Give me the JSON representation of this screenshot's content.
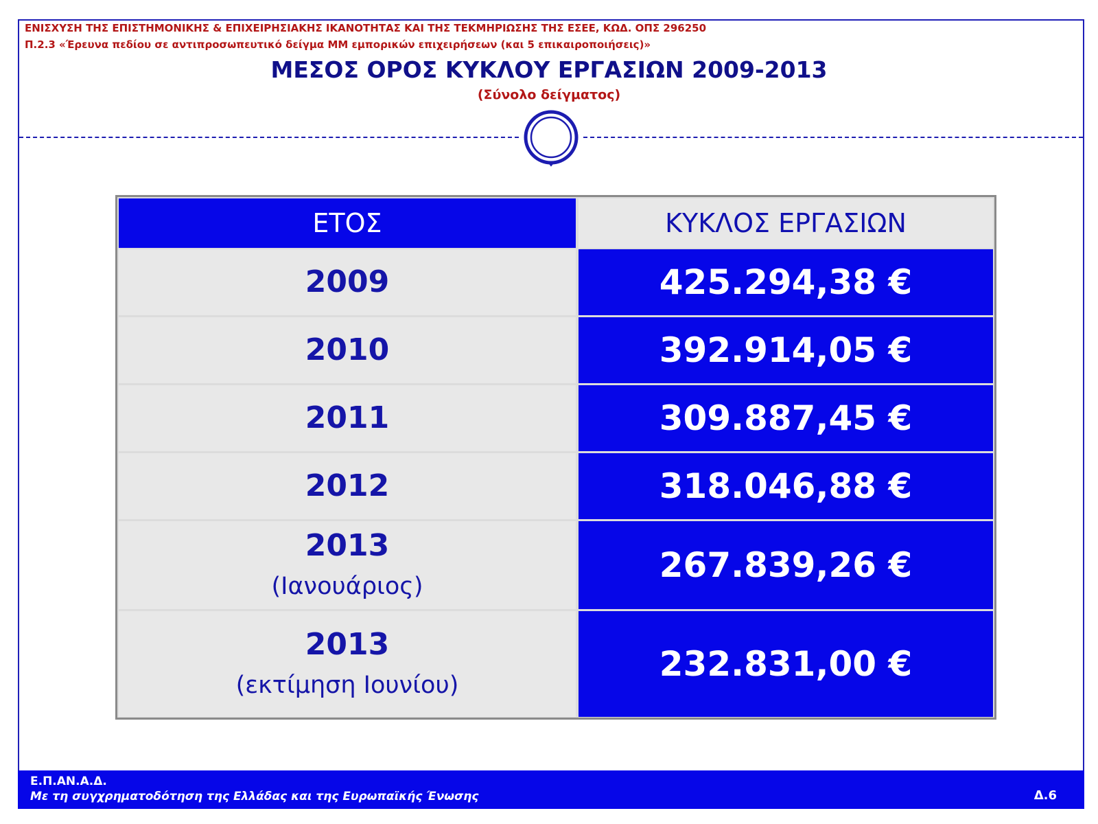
{
  "header": {
    "line1": "ΕΝΙΣΧΥΣΗ ΤΗΣ ΕΠΙΣΤΗΜΟΝΙΚΗΣ & ΕΠΙΧΕΙΡΗΣΙΑΚΗΣ ΙΚΑΝΟΤΗΤΑΣ ΚΑΙ ΤΗΣ ΤΕΚΜΗΡΙΩΣΗΣ ΤΗΣ ΕΣΕΕ, ΚΩΔ. ΟΠΣ 296250",
    "line2": "Π.2.3 «Έρευνα πεδίου σε αντιπροσωπευτικό δείγμα ΜΜ εμπορικών επιχειρήσεων (και 5 επικαιροποιήσεις)»",
    "title": "ΜΕΣΟΣ ΟΡΟΣ ΚΥΚΛΟΥ ΕΡΓΑΣΙΩΝ 2009-2013",
    "subtitle": "(Σύνολο δείγματος)",
    "emblem_icon": "ring-emblem-icon"
  },
  "table": {
    "col_year": "ΕΤΟΣ",
    "col_revenue": "ΚΥΚΛΟΣ ΕΡΓΑΣΙΩΝ",
    "rows": [
      {
        "year": "2009",
        "note": "",
        "value": "425.294,38 €"
      },
      {
        "year": "2010",
        "note": "",
        "value": "392.914,05 €"
      },
      {
        "year": "2011",
        "note": "",
        "value": "309.887,45 €"
      },
      {
        "year": "2012",
        "note": "",
        "value": "318.046,88 €"
      },
      {
        "year": "2013",
        "note": "(Ιανουάριος)",
        "value": "267.839,26 €"
      },
      {
        "year": "2013",
        "note": "(εκτίμηση Ιουνίου)",
        "value": "232.831,00 €"
      }
    ]
  },
  "footer": {
    "line1": "Ε.Π.ΑΝ.Α.Δ.",
    "line2": "Με τη συγχρηματοδότηση της Ελλάδας και της Ευρωπαϊκής Ένωσης",
    "page": "Δ.6"
  },
  "colors": {
    "primary_blue": "#0606e8",
    "dark_blue": "#10108a",
    "header_red": "#b31616",
    "light_gray": "#e8e8e8"
  }
}
